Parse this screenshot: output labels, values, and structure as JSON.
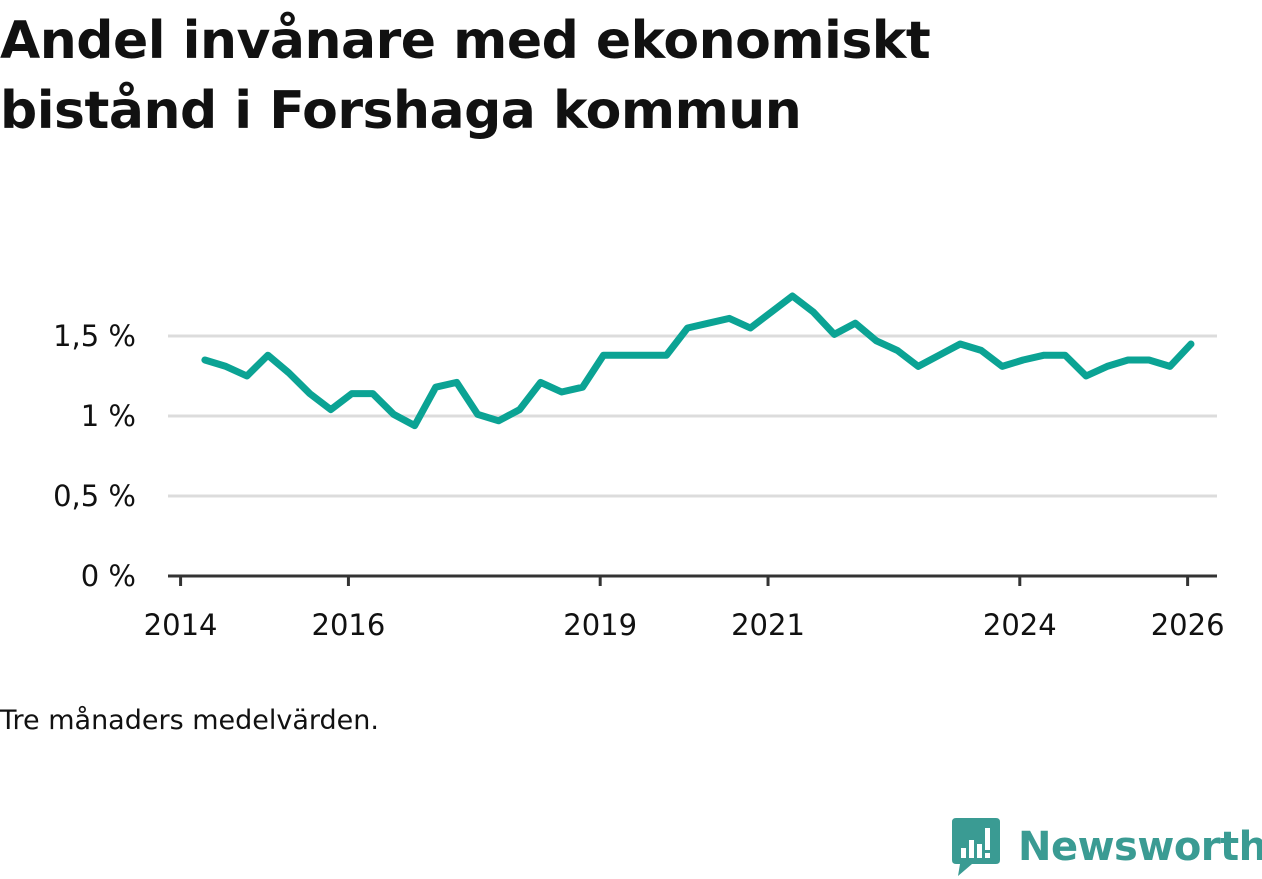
{
  "header": {
    "title": "Andel invånare med ekonomiskt bistånd i Forshaga kommun"
  },
  "footer": {
    "note": "Tre månaders medelvärden.",
    "brand": "Newsworthy"
  },
  "colors": {
    "line": "#0ba394",
    "grid": "#dcdcdc",
    "axis": "#333333",
    "text": "#111111",
    "brand": "#3a9b93"
  },
  "chart_data": {
    "type": "line",
    "title": "Andel invånare med ekonomiskt bistånd i Forshaga kommun",
    "xlabel": "",
    "ylabel": "",
    "ylim": [
      0,
      1.5
    ],
    "xlim": [
      2013.85,
      2026.35
    ],
    "grid": true,
    "y_ticks": [
      {
        "value": 0,
        "label": "0 %"
      },
      {
        "value": 0.5,
        "label": "0,5 %"
      },
      {
        "value": 1,
        "label": "1 %"
      },
      {
        "value": 1.5,
        "label": "1,5 %"
      }
    ],
    "x_ticks": [
      {
        "value": 2014,
        "label": "2014"
      },
      {
        "value": 2016,
        "label": "2016"
      },
      {
        "value": 2019,
        "label": "2019"
      },
      {
        "value": 2021,
        "label": "2021"
      },
      {
        "value": 2024,
        "label": "2024"
      },
      {
        "value": 2026,
        "label": "2026"
      }
    ],
    "series": [
      {
        "name": "Andel invånare med ekonomiskt bistånd",
        "x": [
          2014.29,
          2014.54,
          2014.79,
          2015.04,
          2015.29,
          2015.54,
          2015.79,
          2016.04,
          2016.29,
          2016.54,
          2016.79,
          2017.04,
          2017.29,
          2017.54,
          2017.79,
          2018.04,
          2018.29,
          2018.54,
          2018.79,
          2019.04,
          2019.29,
          2019.54,
          2019.79,
          2020.04,
          2020.29,
          2020.54,
          2020.79,
          2021.04,
          2021.29,
          2021.54,
          2021.79,
          2022.04,
          2022.29,
          2022.54,
          2022.79,
          2023.04,
          2023.29,
          2023.54,
          2023.79,
          2024.04,
          2024.29,
          2024.54,
          2024.79,
          2025.04,
          2025.29,
          2025.54,
          2025.79,
          2026.04
        ],
        "values": [
          1.35,
          1.31,
          1.25,
          1.38,
          1.27,
          1.14,
          1.04,
          1.14,
          1.14,
          1.01,
          0.94,
          1.18,
          1.21,
          1.01,
          0.97,
          1.04,
          1.21,
          1.15,
          1.18,
          1.38,
          1.38,
          1.38,
          1.38,
          1.55,
          1.58,
          1.61,
          1.55,
          1.65,
          1.75,
          1.65,
          1.51,
          1.58,
          1.47,
          1.41,
          1.31,
          1.38,
          1.45,
          1.41,
          1.31,
          1.35,
          1.38,
          1.38,
          1.25,
          1.31,
          1.35,
          1.35,
          1.31,
          1.45
        ]
      }
    ]
  }
}
